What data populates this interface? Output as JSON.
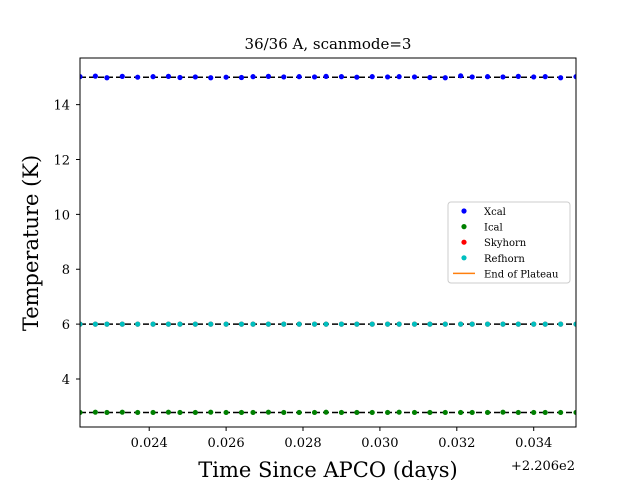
{
  "chart_data": {
    "type": "scatter",
    "title": "36/36 A, scanmode=3",
    "xlabel": "Time Since APCO (days)",
    "ylabel": "Temperature (K)",
    "x_offset_label": "+2.206e2",
    "xlim": [
      220.6222,
      220.6351
    ],
    "ylim": [
      2.25,
      15.7
    ],
    "x_ticks": [
      220.624,
      220.626,
      220.628,
      220.63,
      220.632,
      220.634
    ],
    "x_tick_labels": [
      "0.024",
      "0.026",
      "0.028",
      "0.030",
      "0.032",
      "0.034"
    ],
    "y_ticks": [
      4,
      6,
      8,
      10,
      12,
      14
    ],
    "y_tick_labels": [
      "4",
      "6",
      "8",
      "10",
      "12",
      "14"
    ],
    "x": [
      220.6222,
      220.6226,
      220.6229,
      220.6233,
      220.6237,
      220.6241,
      220.6245,
      220.6248,
      220.6252,
      220.6256,
      220.626,
      220.6264,
      220.6267,
      220.6271,
      220.6275,
      220.6279,
      220.6283,
      220.6286,
      220.629,
      220.6294,
      220.6298,
      220.6302,
      220.6305,
      220.6309,
      220.6313,
      220.6317,
      220.6321,
      220.6324,
      220.6328,
      220.6332,
      220.6336,
      220.634,
      220.6343,
      220.6347,
      220.6351
    ],
    "series": [
      {
        "name": "Xcal",
        "color": "#0000ff",
        "values": [
          15.02,
          15.04,
          14.98,
          15.03,
          15.0,
          15.02,
          15.03,
          14.99,
          15.01,
          14.98,
          15.0,
          14.99,
          15.02,
          15.03,
          15.01,
          15.02,
          15.01,
          15.03,
          15.02,
          15.0,
          15.02,
          15.01,
          15.02,
          15.01,
          14.99,
          14.98,
          15.05,
          15.01,
          15.02,
          15.01,
          15.03,
          15.01,
          15.02,
          14.98,
          15.02
        ]
      },
      {
        "name": "Ical",
        "color": "#008000",
        "values": [
          2.78,
          2.79,
          2.78,
          2.79,
          2.78,
          2.78,
          2.79,
          2.78,
          2.78,
          2.79,
          2.78,
          2.78,
          2.78,
          2.79,
          2.78,
          2.78,
          2.78,
          2.79,
          2.78,
          2.78,
          2.78,
          2.78,
          2.79,
          2.78,
          2.78,
          2.78,
          2.78,
          2.78,
          2.78,
          2.79,
          2.78,
          2.78,
          2.78,
          2.78,
          2.78
        ]
      },
      {
        "name": "Skyhorn",
        "color": "#ff0000",
        "values": [
          6.0,
          6.0,
          6.0,
          6.0,
          6.0,
          6.0,
          6.0,
          6.0,
          6.0,
          6.0,
          6.0,
          6.0,
          6.0,
          6.0,
          6.0,
          6.0,
          6.0,
          6.0,
          6.0,
          6.0,
          6.0,
          6.0,
          6.0,
          6.0,
          6.0,
          6.0,
          6.0,
          6.0,
          6.0,
          6.0,
          6.0,
          6.0,
          6.0,
          6.0,
          6.0
        ]
      },
      {
        "name": "Refhorn",
        "color": "#00bfbf",
        "values": [
          6.0,
          6.0,
          6.0,
          6.0,
          6.0,
          6.0,
          6.0,
          6.0,
          6.0,
          6.0,
          6.0,
          6.0,
          6.0,
          6.0,
          6.0,
          6.0,
          6.0,
          6.0,
          6.0,
          6.0,
          6.0,
          6.0,
          6.0,
          6.0,
          6.0,
          6.0,
          6.0,
          6.0,
          6.0,
          6.0,
          6.0,
          6.0,
          6.0,
          6.0,
          6.0
        ]
      }
    ],
    "reference_lines": [
      15.0,
      6.0,
      2.78
    ],
    "reference_line_style": "dashed",
    "legend": [
      {
        "label": "Xcal",
        "kind": "marker",
        "color": "#0000ff"
      },
      {
        "label": "Ical",
        "kind": "marker",
        "color": "#008000"
      },
      {
        "label": "Skyhorn",
        "kind": "marker",
        "color": "#ff0000"
      },
      {
        "label": "Refhorn",
        "kind": "marker",
        "color": "#00bfbf"
      },
      {
        "label": "End of Plateau",
        "kind": "line",
        "color": "#ff7f0e"
      }
    ],
    "legend_position": "center-right",
    "grid": false
  }
}
